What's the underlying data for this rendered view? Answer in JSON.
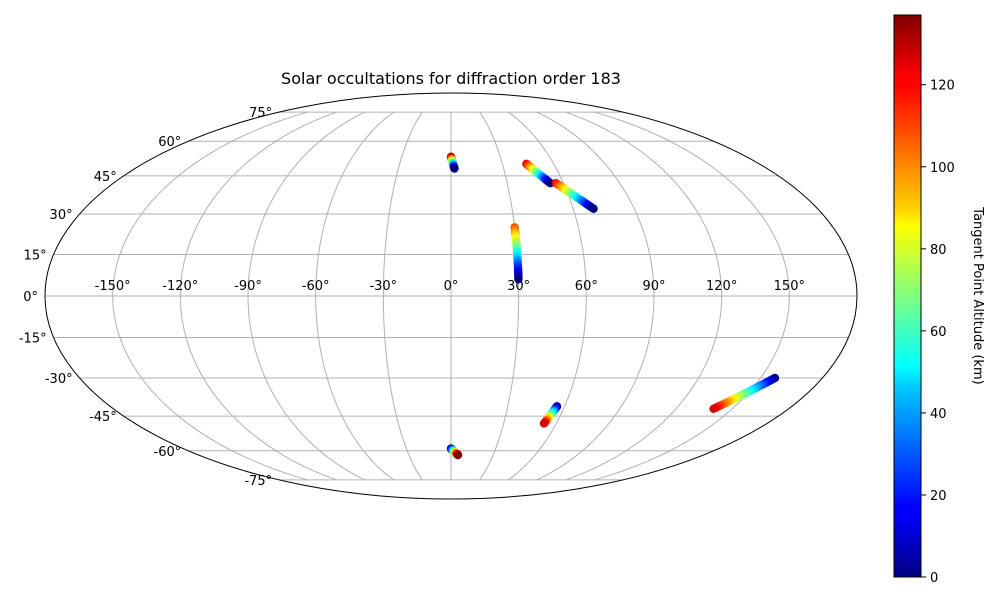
{
  "chart_data": {
    "type": "scatter",
    "projection": "mollweide",
    "title": "Solar occultations for diffraction order 183",
    "longitude_ticks": [
      {
        "value": -150,
        "label": "-150°"
      },
      {
        "value": -120,
        "label": "-120°"
      },
      {
        "value": -90,
        "label": "-90°"
      },
      {
        "value": -60,
        "label": "-60°"
      },
      {
        "value": -30,
        "label": "-30°"
      },
      {
        "value": 0,
        "label": "0°"
      },
      {
        "value": 30,
        "label": "30°"
      },
      {
        "value": 60,
        "label": "60°"
      },
      {
        "value": 90,
        "label": "90°"
      },
      {
        "value": 120,
        "label": "120°"
      },
      {
        "value": 150,
        "label": "150°"
      }
    ],
    "latitude_ticks": [
      {
        "value": 75,
        "label": "75°"
      },
      {
        "value": 60,
        "label": "60°"
      },
      {
        "value": 45,
        "label": "45°"
      },
      {
        "value": 30,
        "label": "30°"
      },
      {
        "value": 15,
        "label": "15°"
      },
      {
        "value": 0,
        "label": "0°"
      },
      {
        "value": -15,
        "label": "-15°"
      },
      {
        "value": -30,
        "label": "-30°"
      },
      {
        "value": -45,
        "label": "-45°"
      },
      {
        "value": -60,
        "label": "-60°"
      },
      {
        "value": -75,
        "label": "-75°"
      }
    ],
    "grid": true,
    "colorbar": {
      "label": "Tangent Point Altitude (km)",
      "colormap": "jet",
      "range": [
        0,
        137
      ],
      "ticks": [
        {
          "value": 0,
          "label": "0"
        },
        {
          "value": 20,
          "label": "20"
        },
        {
          "value": 40,
          "label": "40"
        },
        {
          "value": 60,
          "label": "60"
        },
        {
          "value": 80,
          "label": "80"
        },
        {
          "value": 100,
          "label": "100"
        },
        {
          "value": 120,
          "label": "120"
        }
      ]
    },
    "tracks": [
      {
        "lon_start": 0,
        "lat_start": 53,
        "lon_end": 2,
        "lat_end": 48,
        "alt_start": 137,
        "alt_end": 0
      },
      {
        "lon_start": 44,
        "lat_start": 50,
        "lon_end": 53,
        "lat_end": 42,
        "alt_start": 125,
        "alt_end": 0
      },
      {
        "lon_start": 56,
        "lat_start": 42,
        "lon_end": 70,
        "lat_end": 32,
        "alt_start": 120,
        "alt_end": 0
      },
      {
        "lon_start": 30,
        "lat_start": 25,
        "lon_end": 30,
        "lat_end": 6,
        "alt_start": 110,
        "alt_end": 0
      },
      {
        "lon_start": 0,
        "lat_start": -59,
        "lon_end": 5,
        "lat_end": -62,
        "alt_start": 0,
        "alt_end": 137
      },
      {
        "lon_start": 56,
        "lat_start": -41,
        "lon_end": 53,
        "lat_end": -48,
        "alt_start": 0,
        "alt_end": 125
      },
      {
        "lon_start": 157,
        "lat_start": -30,
        "lon_end": 140,
        "lat_end": -42,
        "alt_start": 0,
        "alt_end": 125
      }
    ]
  }
}
